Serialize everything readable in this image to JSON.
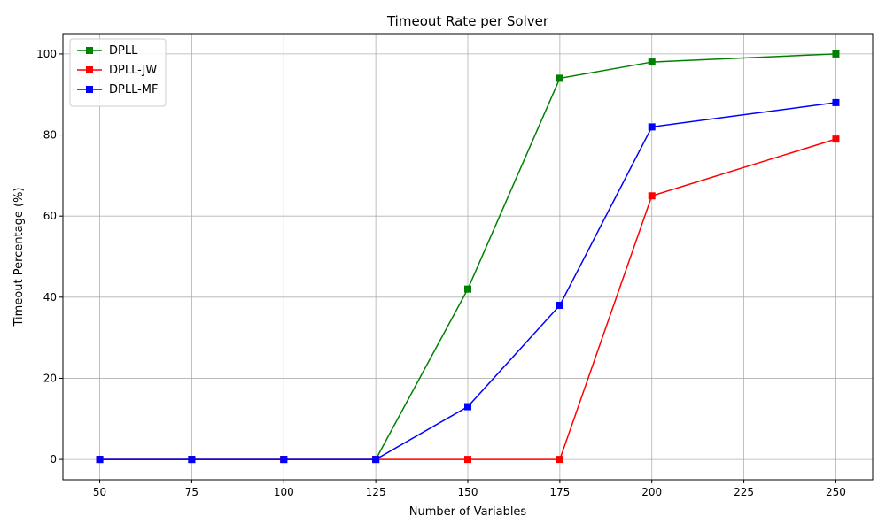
{
  "chart_data": {
    "type": "line",
    "title": "Timeout Rate per Solver",
    "xlabel": "Number of Variables",
    "ylabel": "Timeout Percentage (%)",
    "x": [
      50,
      75,
      100,
      125,
      150,
      175,
      200,
      250
    ],
    "xticks": [
      50,
      75,
      100,
      125,
      150,
      175,
      200,
      225,
      250
    ],
    "yticks": [
      0,
      20,
      40,
      60,
      80,
      100
    ],
    "xlim": [
      40,
      260
    ],
    "ylim": [
      -5,
      105
    ],
    "grid": true,
    "legend_position": "top-left",
    "marker": "square",
    "series": [
      {
        "name": "DPLL",
        "color": "#008000",
        "values": [
          0,
          0,
          0,
          0,
          42,
          94,
          98,
          100
        ]
      },
      {
        "name": "DPLL-JW",
        "color": "#ff0000",
        "values": [
          0,
          0,
          0,
          0,
          0,
          0,
          65,
          79
        ]
      },
      {
        "name": "DPLL-MF",
        "color": "#0000ff",
        "values": [
          0,
          0,
          0,
          0,
          13,
          38,
          82,
          88
        ]
      }
    ]
  }
}
